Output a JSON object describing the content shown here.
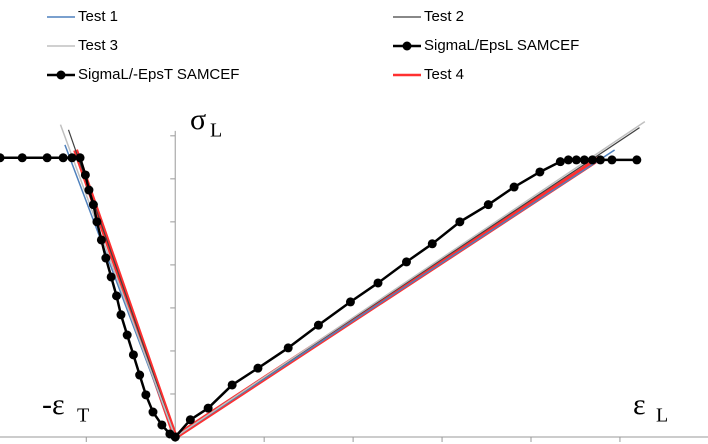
{
  "chart_data": {
    "type": "line",
    "xlim": [
      -1.97,
      5.99
    ],
    "ylim": [
      0,
      7.6
    ],
    "xticks": [
      -1,
      0,
      1,
      2,
      3,
      4,
      5
    ],
    "yticks": [
      1,
      2,
      3,
      4,
      5,
      6,
      7
    ],
    "y_axis_symbol": "σ",
    "y_axis_subscript": "L",
    "x_left_symbol": "-ε",
    "x_left_subscript": "T",
    "x_right_symbol": "ε",
    "x_right_subscript": "L",
    "series": [
      {
        "name": "Test 1",
        "color": "#4f81bd",
        "width": 1.5,
        "marker": false,
        "x": [
          -1.24,
          0,
          4.94
        ],
        "values": [
          6.79,
          0,
          6.67
        ]
      },
      {
        "name": "Test 2",
        "color": "#404040",
        "width": 1.2,
        "marker": false,
        "x": [
          -1.2,
          0,
          5.22
        ],
        "values": [
          7.14,
          0,
          7.19
        ]
      },
      {
        "name": "Test 3",
        "color": "#c0c0c0",
        "width": 1.5,
        "marker": false,
        "x": [
          -1.29,
          0,
          5.28
        ],
        "values": [
          7.26,
          0,
          7.33
        ]
      },
      {
        "name": "SigmaL/EpsL SAMCEF",
        "color": "#000000",
        "width": 2.5,
        "marker": true,
        "x": [
          0,
          0.17,
          0.37,
          0.64,
          0.93,
          1.27,
          1.61,
          1.97,
          2.28,
          2.6,
          2.89,
          3.2,
          3.52,
          3.81,
          4.1,
          4.33,
          4.42,
          4.51,
          4.6,
          4.69,
          4.78,
          4.91,
          5.19
        ],
        "values": [
          0,
          0.4,
          0.67,
          1.21,
          1.6,
          2.07,
          2.6,
          3.14,
          3.58,
          4.07,
          4.49,
          5.0,
          5.4,
          5.81,
          6.16,
          6.4,
          6.44,
          6.44,
          6.44,
          6.44,
          6.44,
          6.44,
          6.44
        ]
      },
      {
        "name": "SigmaL/-EpsT SAMCEF",
        "color": "#000000",
        "width": 2.5,
        "marker": true,
        "x": [
          -1.97,
          -1.72,
          -1.44,
          -1.26,
          -1.16,
          -1.07,
          -1.01,
          -0.97,
          -0.92,
          -0.88,
          -0.83,
          -0.78,
          -0.72,
          -0.66,
          -0.61,
          -0.54,
          -0.47,
          -0.4,
          -0.33,
          -0.25,
          -0.15,
          -0.06,
          0
        ],
        "values": [
          6.49,
          6.49,
          6.49,
          6.49,
          6.49,
          6.49,
          6.09,
          5.74,
          5.4,
          5.0,
          4.58,
          4.16,
          3.72,
          3.28,
          2.84,
          2.37,
          1.91,
          1.44,
          0.98,
          0.58,
          0.28,
          0.07,
          0
        ]
      },
      {
        "name": "Test 4",
        "color": "#ff3030",
        "width": 5,
        "marker": false,
        "x": [
          -1.12,
          0,
          4.78
        ],
        "values": [
          6.67,
          0,
          6.49
        ]
      }
    ]
  }
}
